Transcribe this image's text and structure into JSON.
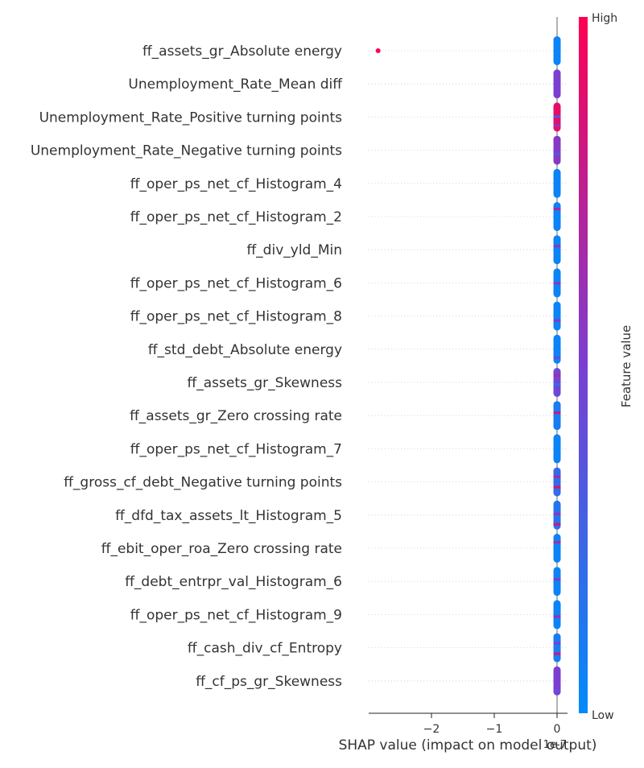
{
  "chart_data": {
    "type": "scatter",
    "title": "",
    "xlabel": "SHAP value (impact on model output)",
    "x_offset_label": "1e-7",
    "xlim": [
      -2.95,
      0.15
    ],
    "xticks": [
      -2,
      -1,
      0
    ],
    "xtick_labels": [
      "−2",
      "−1",
      "0"
    ],
    "features": [
      {
        "name": "ff_assets_gr_Absolute energy",
        "dominant_color_value": 0.05,
        "streaks": [],
        "outliers": [
          {
            "x": -2.85,
            "color_value": 1.0
          }
        ]
      },
      {
        "name": "Unemployment_Rate_Mean diff",
        "dominant_color_value": 0.5,
        "streaks": [],
        "outliers": []
      },
      {
        "name": "Unemployment_Rate_Positive turning points",
        "dominant_color_value": 0.9,
        "streaks": [
          0.3,
          0.6
        ],
        "outliers": []
      },
      {
        "name": "Unemployment_Rate_Negative turning points",
        "dominant_color_value": 0.55,
        "streaks": [
          0.3
        ],
        "outliers": []
      },
      {
        "name": "ff_oper_ps_net_cf_Histogram_4",
        "dominant_color_value": 0.05,
        "streaks": [],
        "outliers": []
      },
      {
        "name": "ff_oper_ps_net_cf_Histogram_2",
        "dominant_color_value": 0.05,
        "streaks": [
          0.75
        ],
        "outliers": []
      },
      {
        "name": "ff_div_yld_Min",
        "dominant_color_value": 0.05,
        "streaks": [
          0.6
        ],
        "outliers": []
      },
      {
        "name": "ff_oper_ps_net_cf_Histogram_6",
        "dominant_color_value": 0.05,
        "streaks": [
          0.6
        ],
        "outliers": []
      },
      {
        "name": "ff_oper_ps_net_cf_Histogram_8",
        "dominant_color_value": 0.05,
        "streaks": [
          0.6
        ],
        "outliers": []
      },
      {
        "name": "ff_std_debt_Absolute energy",
        "dominant_color_value": 0.05,
        "streaks": [
          0.4
        ],
        "outliers": []
      },
      {
        "name": "ff_assets_gr_Skewness",
        "dominant_color_value": 0.45,
        "streaks": [
          0.7,
          0.2
        ],
        "outliers": []
      },
      {
        "name": "ff_assets_gr_Zero crossing rate",
        "dominant_color_value": 0.1,
        "streaks": [
          0.85
        ],
        "outliers": []
      },
      {
        "name": "ff_oper_ps_net_cf_Histogram_7",
        "dominant_color_value": 0.05,
        "streaks": [],
        "outliers": []
      },
      {
        "name": "ff_gross_cf_debt_Negative turning points",
        "dominant_color_value": 0.2,
        "streaks": [
          0.9,
          0.7
        ],
        "outliers": []
      },
      {
        "name": "ff_dfd_tax_assets_lt_Histogram_5",
        "dominant_color_value": 0.15,
        "streaks": [
          0.85,
          0.6
        ],
        "outliers": []
      },
      {
        "name": "ff_ebit_oper_roa_Zero crossing rate",
        "dominant_color_value": 0.05,
        "streaks": [
          0.7
        ],
        "outliers": []
      },
      {
        "name": "ff_debt_entrpr_val_Histogram_6",
        "dominant_color_value": 0.05,
        "streaks": [
          0.6
        ],
        "outliers": []
      },
      {
        "name": "ff_oper_ps_net_cf_Histogram_9",
        "dominant_color_value": 0.05,
        "streaks": [
          0.7
        ],
        "outliers": []
      },
      {
        "name": "ff_cash_div_cf_Entropy",
        "dominant_color_value": 0.1,
        "streaks": [
          0.85,
          0.5
        ],
        "outliers": []
      },
      {
        "name": "ff_cf_ps_gr_Skewness",
        "dominant_color_value": 0.5,
        "streaks": [
          0.4
        ],
        "outliers": []
      }
    ],
    "colorbar": {
      "label": "Feature value",
      "high_label": "High",
      "low_label": "Low",
      "low_color": "#008bfb",
      "high_color": "#ff0052"
    },
    "legend": "colorbar-right",
    "grid": "dotted-horizontal-per-row"
  }
}
